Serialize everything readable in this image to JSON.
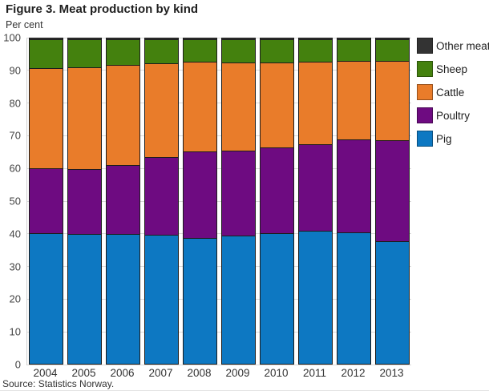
{
  "header": {
    "title": "Figure 3. Meat production by kind",
    "unit_label": "Per cent"
  },
  "source": "Source: Statistics Norway.",
  "colors": {
    "pig": "#0d78c2",
    "poultry": "#6e0b81",
    "cattle": "#e97c2a",
    "sheep": "#44810e",
    "other_meat": "#333333",
    "gridline": "#d9d9d9",
    "axis_text": "#444444"
  },
  "legend": [
    {
      "label": "Other meat",
      "color": "#333333"
    },
    {
      "label": "Sheep",
      "color": "#44810e"
    },
    {
      "label": "Cattle",
      "color": "#e97c2a"
    },
    {
      "label": "Poultry",
      "color": "#6e0b81"
    },
    {
      "label": "Pig",
      "color": "#0d78c2"
    }
  ],
  "chart_data": {
    "type": "bar",
    "stacked": true,
    "title": "Figure 3. Meat production by kind",
    "xlabel": "",
    "ylabel": "Per cent",
    "ylim": [
      0,
      100
    ],
    "yticks": [
      0,
      10,
      20,
      30,
      40,
      50,
      60,
      70,
      80,
      90,
      100
    ],
    "grid": true,
    "legend_position": "right",
    "categories": [
      "2004",
      "2005",
      "2006",
      "2007",
      "2008",
      "2009",
      "2010",
      "2011",
      "2012",
      "2013"
    ],
    "series": [
      {
        "name": "Pig",
        "color": "#0d78c2",
        "values": [
          40.0,
          39.7,
          39.6,
          39.4,
          38.5,
          39.3,
          40.0,
          40.7,
          40.2,
          37.4
        ]
      },
      {
        "name": "Poultry",
        "color": "#6e0b81",
        "values": [
          19.7,
          19.9,
          21.3,
          23.9,
          26.5,
          26.0,
          26.3,
          26.4,
          28.4,
          30.9
        ]
      },
      {
        "name": "Cattle",
        "color": "#e97c2a",
        "values": [
          30.8,
          31.1,
          30.5,
          28.6,
          27.4,
          26.9,
          25.9,
          25.2,
          24.0,
          24.4
        ]
      },
      {
        "name": "Sheep",
        "color": "#44810e",
        "values": [
          8.8,
          8.6,
          7.9,
          7.4,
          6.9,
          7.1,
          7.1,
          7.0,
          6.7,
          6.6
        ]
      },
      {
        "name": "Other meat",
        "color": "#333333",
        "values": [
          0.7,
          0.7,
          0.7,
          0.7,
          0.7,
          0.7,
          0.7,
          0.7,
          0.7,
          0.7
        ]
      }
    ]
  }
}
